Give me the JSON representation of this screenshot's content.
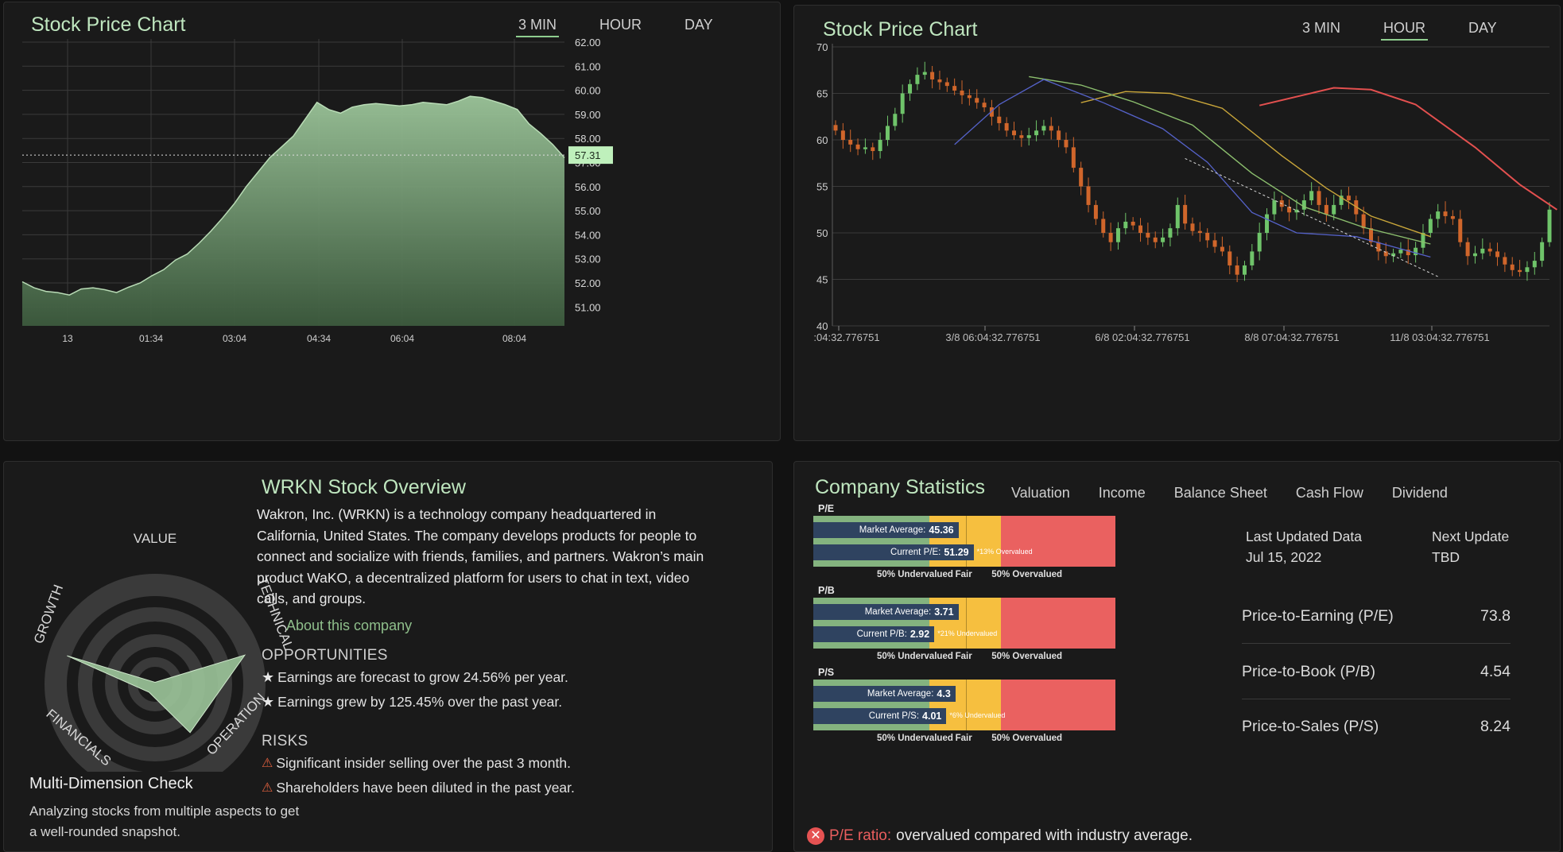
{
  "chart_left": {
    "title": "Stock Price Chart",
    "tabs": [
      {
        "label": "3 MIN",
        "active": true
      },
      {
        "label": "HOUR",
        "active": false
      },
      {
        "label": "DAY",
        "active": false
      }
    ],
    "chart_data": {
      "type": "area",
      "x_ticks": [
        "13",
        "01:34",
        "03:04",
        "04:34",
        "06:04",
        "08:04"
      ],
      "y_ticks": [
        "62.00",
        "61.00",
        "60.00",
        "59.00",
        "58.00",
        "57.00",
        "56.00",
        "55.00",
        "54.00",
        "53.00",
        "52.00",
        "51.00"
      ],
      "ylim": [
        50.25,
        62.0
      ],
      "current_price_label": "57.31",
      "current_price": 57.31,
      "values": [
        52.05,
        51.8,
        51.65,
        51.6,
        51.5,
        51.75,
        51.8,
        51.72,
        51.6,
        51.82,
        52.0,
        52.3,
        52.55,
        52.95,
        53.2,
        53.65,
        54.15,
        54.7,
        55.3,
        56.0,
        56.6,
        57.2,
        57.65,
        58.1,
        58.8,
        59.5,
        59.2,
        59.05,
        59.3,
        59.4,
        59.45,
        59.4,
        59.35,
        59.4,
        59.5,
        59.45,
        59.4,
        59.55,
        59.75,
        59.7,
        59.55,
        59.4,
        59.2,
        58.6,
        58.2,
        57.75,
        57.2
      ]
    }
  },
  "chart_right": {
    "title": "Stock Price Chart",
    "tabs": [
      {
        "label": "3 MIN",
        "active": false
      },
      {
        "label": "HOUR",
        "active": true
      },
      {
        "label": "DAY",
        "active": false
      }
    ],
    "chart_data": {
      "type": "candlestick",
      "y_ticks": [
        "70",
        "65",
        "60",
        "55",
        "50",
        "45",
        "40"
      ],
      "ylim": [
        40,
        70
      ],
      "x_ticks": [
        ":04:32.776751",
        "3/8 06:04:32.776751",
        "6/8 02:04:32.776751",
        "8/8 07:04:32.776751",
        "11/8 03:04:32.776751"
      ],
      "closes": [
        61,
        60,
        59.5,
        59,
        59.2,
        58.8,
        60,
        61.5,
        62.8,
        65,
        66,
        67,
        67.3,
        66.5,
        66.2,
        65.8,
        65.3,
        64.8,
        64.5,
        64,
        63.5,
        62.5,
        61.8,
        61,
        60.5,
        60.2,
        60.5,
        61,
        61.5,
        61,
        60,
        59.2,
        57,
        55,
        53,
        51.5,
        50,
        49,
        50.5,
        51.2,
        50.8,
        50,
        49.5,
        49,
        49.5,
        50.5,
        53,
        51,
        50.2,
        50,
        49.2,
        48.5,
        48,
        46.5,
        45.5,
        46.5,
        48,
        50,
        52,
        53.5,
        52.8,
        52.2,
        52.5,
        53.5,
        54.5,
        53,
        52,
        53,
        54,
        53.5,
        52,
        50.5,
        49,
        48,
        47.5,
        47.8,
        48.2,
        47.6,
        48.4,
        50,
        51.5,
        52.3,
        51.8,
        51.5,
        49,
        47.5,
        47.8,
        48.3,
        48,
        47.4,
        46.6,
        46,
        45.8,
        46.3,
        47,
        49,
        52.5
      ],
      "ma_red": [
        [
          57,
          63.7
        ],
        [
          67,
          65.6
        ],
        [
          72,
          65.4
        ],
        [
          78,
          63.8
        ],
        [
          86,
          59.2
        ],
        [
          92,
          55.2
        ],
        [
          97,
          52.5
        ]
      ],
      "ma_yellow": [
        [
          33,
          64
        ],
        [
          39,
          65.2
        ],
        [
          45,
          65
        ],
        [
          52,
          63.4
        ],
        [
          60,
          58.3
        ],
        [
          66,
          54.8
        ],
        [
          72,
          51.8
        ],
        [
          80,
          49.6
        ]
      ],
      "ma_green": [
        [
          26,
          66.8
        ],
        [
          33,
          65.9
        ],
        [
          40,
          64.1
        ],
        [
          48,
          61.6
        ],
        [
          56,
          56.4
        ],
        [
          63,
          52.8
        ],
        [
          71,
          50.6
        ],
        [
          80,
          48.8
        ]
      ],
      "ma_blue": [
        [
          16,
          59.5
        ],
        [
          22,
          63.8
        ],
        [
          28,
          66.5
        ],
        [
          36,
          64
        ],
        [
          44,
          61.2
        ],
        [
          50,
          57.6
        ],
        [
          56,
          52.2
        ],
        [
          62,
          50
        ],
        [
          70,
          49.6
        ],
        [
          80,
          47.4
        ]
      ],
      "trendline": [
        [
          47,
          58
        ],
        [
          81,
          45.3
        ]
      ]
    }
  },
  "dimension_check": {
    "labels": {
      "value": "VALUE",
      "technical": "TECHNICAL",
      "operation": "OPERATION",
      "financials": "FINANCIALS",
      "growth": "GROWTH"
    },
    "title": "Multi-Dimension Check",
    "description": "Analyzing stocks from multiple aspects to get a well-rounded snapshot.",
    "scores": {
      "value": 0.02,
      "technical": 0.95,
      "operation": 0.6,
      "financials": 0.1,
      "growth": 0.93
    }
  },
  "overview": {
    "title": "WRKN Stock Overview",
    "description": "Wakron, Inc. (WRKN) is a technology company headquartered in California, United States. The company develops products for people to connect and socialize with friends, families, and partners. Wakron’s main product WaKO, a decentralized platform for users to chat in text, video calls, and groups.",
    "about_link": "About this company",
    "opportunities_title": "OPPORTUNITIES",
    "opportunities": [
      "Earnings are forecast to grow 24.56% per year.",
      "Earnings grew by 125.45% over the past year."
    ],
    "risks_title": "RISKS",
    "risks": [
      "Significant insider selling over the past 3 month.",
      "Shareholders have been diluted in the past year."
    ]
  },
  "company_stats": {
    "title": "Company Statistics",
    "tabs": [
      "Valuation",
      "Income",
      "Balance Sheet",
      "Cash Flow",
      "Dividend"
    ],
    "bars": [
      {
        "label": "P/E",
        "market_label": "Market Average:",
        "market_value": "45.36",
        "current_label": "Current P/E:",
        "current_value": "51.29",
        "note": "*13% Overvalued",
        "market_frac": 0.37,
        "current_frac": 0.42
      },
      {
        "label": "P/B",
        "market_label": "Market Average:",
        "market_value": "3.71",
        "current_label": "Current P/B:",
        "current_value": "2.92",
        "note": "*21% Undervalued",
        "market_frac": 0.37,
        "current_frac": 0.29
      },
      {
        "label": "P/S",
        "market_label": "Market Average:",
        "market_value": "4.3",
        "current_label": "Current P/S:",
        "current_value": "4.01",
        "note": "*6% Undervalued",
        "market_frac": 0.36,
        "current_frac": 0.33
      }
    ],
    "scale_labels": [
      "50% Undervalued",
      "Fair",
      "50% Overvalued"
    ],
    "colors": {
      "green": "#84b37f",
      "navy": "#2f4360",
      "yellow": "#f6bf3f",
      "red": "#ea6160"
    },
    "last_updated_label": "Last Updated Data",
    "last_updated_value": "Jul 15, 2022",
    "next_update_label": "Next Update",
    "next_update_value": "TBD",
    "ratios": [
      {
        "label": "Price-to-Earning (P/E)",
        "value": "73.8"
      },
      {
        "label": "Price-to-Book (P/B)",
        "value": "4.54"
      },
      {
        "label": "Price-to-Sales (P/S)",
        "value": "8.24"
      }
    ],
    "warning_label": "P/E ratio:",
    "warning_text": "overvalued compared with industry average."
  }
}
